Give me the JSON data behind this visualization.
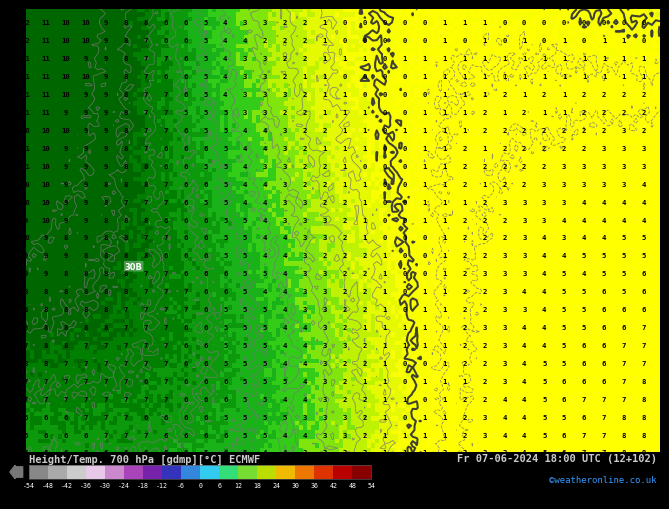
{
  "title_left": "Height/Temp. 700 hPa [gdmp][°C] ECMWF",
  "title_right": "Fr 07-06-2024 18:00 UTC (12+102)",
  "credit": "©weatheronline.co.uk",
  "colorbar_values": [
    -54,
    -48,
    -42,
    -36,
    -30,
    -24,
    -18,
    -12,
    -6,
    0,
    6,
    12,
    18,
    24,
    30,
    36,
    42,
    48,
    54
  ],
  "colorbar_tick_labels": [
    "-54",
    "-48",
    "-42",
    "-36",
    "-30",
    "-24",
    "-18",
    "-12",
    "-6",
    "0",
    "6",
    "12",
    "18",
    "24",
    "30",
    "36",
    "42",
    "48",
    "54"
  ],
  "colorbar_colors": [
    "#888888",
    "#aaaaaa",
    "#cccccc",
    "#e8c8e8",
    "#cc88cc",
    "#aa44bb",
    "#7722aa",
    "#3333bb",
    "#3388dd",
    "#33ccee",
    "#33dd77",
    "#77dd33",
    "#bbdd00",
    "#eebb00",
    "#ee7700",
    "#dd3300",
    "#bb0000",
    "#880000"
  ],
  "bg_color": "#000000",
  "text_color_left": "#cccccc",
  "text_color_right": "#cccccc",
  "text_color_credit": "#3399ff",
  "numbers_color": "#000000",
  "contour_color": "#888888",
  "map_green_dark": "#006600",
  "map_green_mid": "#228B22",
  "map_green_light": "#44bb44",
  "map_yellow_green": "#aadd00",
  "map_yellow": "#ffff00",
  "map_yellow_bright": "#ffee00"
}
